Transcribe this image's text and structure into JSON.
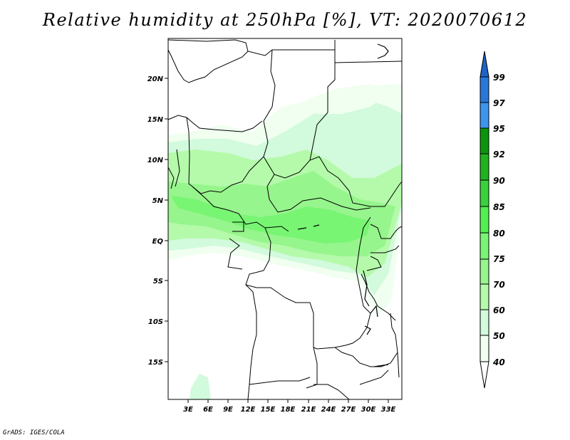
{
  "title": "Relative humidity at 250hPa [%], VT: 2020070612",
  "credit": "GrADS: IGES/COLA",
  "map": {
    "lat_labels": [
      "20N",
      "15N",
      "10N",
      "5N",
      "EQ",
      "5S",
      "10S",
      "15S"
    ],
    "lon_labels": [
      "3E",
      "6E",
      "9E",
      "12E",
      "15E",
      "18E",
      "21E",
      "24E",
      "27E",
      "30E",
      "33E"
    ]
  },
  "colorbar": {
    "levels": [
      "99",
      "97",
      "95",
      "92",
      "90",
      "85",
      "80",
      "75",
      "70",
      "60",
      "50",
      "40"
    ],
    "colors": [
      "#1e64c8",
      "#2878dc",
      "#3c96f0",
      "#0a960a",
      "#1eb41e",
      "#37d23c",
      "#50f050",
      "#78f573",
      "#96f58c",
      "#b4faaa",
      "#d2fadc",
      "#f0fff0"
    ]
  },
  "chart_data": {
    "type": "heatmap",
    "title": "Relative humidity at 250hPa [%], VT: 2020070612",
    "variable": "Relative humidity",
    "level": "250hPa",
    "units": "%",
    "valid_time": "2020070612",
    "x_axis": {
      "ticks": [
        "3E",
        "6E",
        "9E",
        "12E",
        "15E",
        "18E",
        "21E",
        "24E",
        "27E",
        "30E",
        "33E"
      ]
    },
    "y_axis": {
      "ticks": [
        "20N",
        "15N",
        "10N",
        "5N",
        "EQ",
        "5S",
        "10S",
        "15S"
      ]
    },
    "contour_levels": [
      40,
      50,
      60,
      70,
      75,
      80,
      85,
      90,
      92,
      95,
      97,
      99
    ]
  }
}
